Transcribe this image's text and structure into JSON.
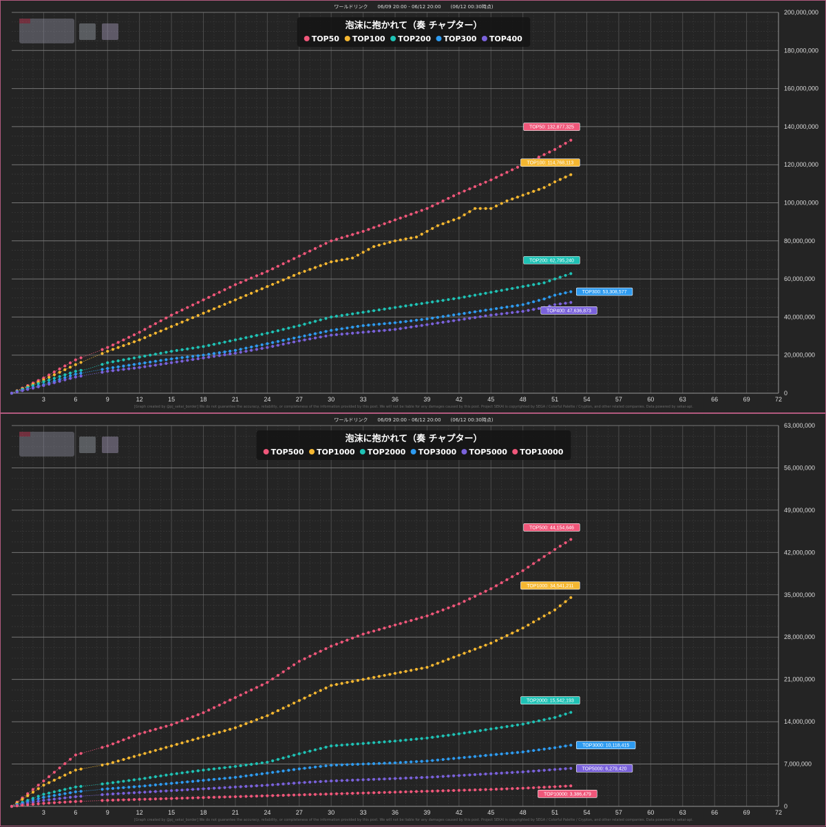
{
  "chart_data": [
    {
      "type": "line",
      "header": "ワールドリンク　　06/09 20:00 - 06/12 20:00　　(06/12 00:30時点)",
      "title": "泡沫に抱かれて（奏 チャプター）",
      "footer": "[Graph created by @pj_sekai_border]  We do not guarantee the accuracy, reliability, or completeness of the information provided by this post. We will not be liable for any damages caused by this post. Project SEKAI is copyrighted by SEGA / Colorful Palette / Crypton, and other related companies. Data powered by sekai-api.",
      "xlim": [
        0,
        72
      ],
      "ylim": [
        0,
        200000000
      ],
      "xticks": [
        "3",
        "6",
        "9",
        "12",
        "15",
        "18",
        "21",
        "24",
        "27",
        "30",
        "33",
        "36",
        "39",
        "42",
        "45",
        "48",
        "51",
        "54",
        "57",
        "60",
        "63",
        "66",
        "69",
        "72"
      ],
      "yticks": [
        "0",
        "20,000,000",
        "40,000,000",
        "60,000,000",
        "80,000,000",
        "100,000,000",
        "120,000,000",
        "140,000,000",
        "160,000,000",
        "180,000,000",
        "200,000,000"
      ],
      "grid": true,
      "legend_position": "top-center",
      "series": [
        {
          "name": "TOP50",
          "color": "#f0577a",
          "label": "TOP50: 132,877,325",
          "final": 132877325,
          "points": [
            [
              0,
              0
            ],
            [
              3,
              8000000
            ],
            [
              6,
              17500000
            ],
            [
              9,
              24000000
            ],
            [
              12,
              32000000
            ],
            [
              15,
              41000000
            ],
            [
              18,
              49000000
            ],
            [
              21,
              57000000
            ],
            [
              24,
              64000000
            ],
            [
              27,
              72000000
            ],
            [
              30,
              80000000
            ],
            [
              33,
              85000000
            ],
            [
              36,
              91000000
            ],
            [
              39,
              97000000
            ],
            [
              42,
              105000000
            ],
            [
              45,
              112000000
            ],
            [
              48,
              120000000
            ],
            [
              51,
              128000000
            ],
            [
              52.5,
              132877325
            ]
          ]
        },
        {
          "name": "TOP100",
          "color": "#f5b731",
          "label": "TOP100: 114,768,113",
          "final": 114768113,
          "points": [
            [
              0,
              0
            ],
            [
              3,
              7000000
            ],
            [
              6,
              15000000
            ],
            [
              9,
              22000000
            ],
            [
              12,
              28000000
            ],
            [
              15,
              35000000
            ],
            [
              18,
              42000000
            ],
            [
              21,
              49000000
            ],
            [
              24,
              56000000
            ],
            [
              27,
              63000000
            ],
            [
              30,
              69000000
            ],
            [
              32,
              71000000
            ],
            [
              34,
              77000000
            ],
            [
              36,
              80000000
            ],
            [
              38,
              82000000
            ],
            [
              40,
              88000000
            ],
            [
              42,
              92000000
            ],
            [
              43.5,
              97000000
            ],
            [
              45,
              97000000
            ],
            [
              46.5,
              101000000
            ],
            [
              48,
              104000000
            ],
            [
              50,
              108000000
            ],
            [
              51,
              111000000
            ],
            [
              52.5,
              114768113
            ]
          ]
        },
        {
          "name": "TOP200",
          "color": "#1fc2b5",
          "label": "TOP200: 62,795,240",
          "final": 62795240,
          "points": [
            [
              0,
              0
            ],
            [
              3,
              6000000
            ],
            [
              6,
              11500000
            ],
            [
              7,
              12500000
            ],
            [
              9,
              16000000
            ],
            [
              12,
              19000000
            ],
            [
              15,
              22000000
            ],
            [
              18,
              24500000
            ],
            [
              21,
              28000000
            ],
            [
              24,
              31500000
            ],
            [
              27,
              35500000
            ],
            [
              30,
              40000000
            ],
            [
              33,
              42500000
            ],
            [
              36,
              45000000
            ],
            [
              39,
              47500000
            ],
            [
              42,
              50000000
            ],
            [
              45,
              53000000
            ],
            [
              48,
              56000000
            ],
            [
              50,
              58000000
            ],
            [
              51,
              60000000
            ],
            [
              52.5,
              62795240
            ]
          ]
        },
        {
          "name": "TOP300",
          "color": "#2e9bf0",
          "label": "TOP300: 53,308,577",
          "final": 53308577,
          "points": [
            [
              0,
              0
            ],
            [
              3,
              4500000
            ],
            [
              6,
              10000000
            ],
            [
              9,
              13000000
            ],
            [
              12,
              15500000
            ],
            [
              15,
              18000000
            ],
            [
              18,
              20000000
            ],
            [
              21,
              22500000
            ],
            [
              24,
              26000000
            ],
            [
              27,
              29500000
            ],
            [
              30,
              33000000
            ],
            [
              33,
              35500000
            ],
            [
              36,
              37000000
            ],
            [
              39,
              39000000
            ],
            [
              42,
              41500000
            ],
            [
              45,
              44000000
            ],
            [
              48,
              46500000
            ],
            [
              50,
              49500000
            ],
            [
              51,
              51500000
            ],
            [
              52.5,
              53308577
            ]
          ]
        },
        {
          "name": "TOP400",
          "color": "#7a62db",
          "label": "TOP400: 47,636,873",
          "final": 47636873,
          "points": [
            [
              0,
              0
            ],
            [
              3,
              4000000
            ],
            [
              6,
              8500000
            ],
            [
              9,
              11500000
            ],
            [
              12,
              13500000
            ],
            [
              15,
              16000000
            ],
            [
              18,
              18500000
            ],
            [
              21,
              21000000
            ],
            [
              24,
              24000000
            ],
            [
              27,
              27500000
            ],
            [
              30,
              30500000
            ],
            [
              33,
              32000000
            ],
            [
              36,
              33500000
            ],
            [
              39,
              36000000
            ],
            [
              42,
              38500000
            ],
            [
              45,
              41000000
            ],
            [
              48,
              43000000
            ],
            [
              50,
              45000000
            ],
            [
              51,
              46500000
            ],
            [
              52.5,
              47636873
            ]
          ]
        }
      ]
    },
    {
      "type": "line",
      "header": "ワールドリンク　　06/09 20:00 - 06/12 20:00　　(06/12 00:30時点)",
      "title": "泡沫に抱かれて（奏 チャプター）",
      "footer": "[Graph created by @pj_sekai_border]  We do not guarantee the accuracy, reliability, or completeness of the information provided by this post. We will not be liable for any damages caused by this post. Project SEKAI is copyrighted by SEGA / Colorful Palette / Crypton, and other related companies. Data powered by sekai-api.",
      "xlim": [
        0,
        72
      ],
      "ylim": [
        0,
        63000000
      ],
      "xticks": [
        "3",
        "6",
        "9",
        "12",
        "15",
        "18",
        "21",
        "24",
        "27",
        "30",
        "33",
        "36",
        "39",
        "42",
        "45",
        "48",
        "51",
        "54",
        "57",
        "60",
        "63",
        "66",
        "69",
        "72"
      ],
      "yticks": [
        "0",
        "7,000,000",
        "14,000,000",
        "21,000,000",
        "28,000,000",
        "35,000,000",
        "42,000,000",
        "49,000,000",
        "56,000,000",
        "63,000,000"
      ],
      "grid": true,
      "legend_position": "top-center",
      "series": [
        {
          "name": "TOP500",
          "color": "#f0577a",
          "label": "TOP500: 44,154,646",
          "final": 44154646,
          "points": [
            [
              0,
              0
            ],
            [
              3,
              4200000
            ],
            [
              6,
              8500000
            ],
            [
              9,
              10000000
            ],
            [
              12,
              12000000
            ],
            [
              15,
              13500000
            ],
            [
              18,
              15500000
            ],
            [
              21,
              18000000
            ],
            [
              24,
              20500000
            ],
            [
              27,
              24000000
            ],
            [
              30,
              26500000
            ],
            [
              33,
              28500000
            ],
            [
              36,
              30000000
            ],
            [
              39,
              31500000
            ],
            [
              42,
              33500000
            ],
            [
              45,
              36000000
            ],
            [
              48,
              39000000
            ],
            [
              51,
              42500000
            ],
            [
              52.5,
              44154646
            ]
          ]
        },
        {
          "name": "TOP1000",
          "color": "#f5b731",
          "label": "TOP1000: 34,541,211",
          "final": 34541211,
          "points": [
            [
              0,
              0
            ],
            [
              3,
              3500000
            ],
            [
              6,
              6000000
            ],
            [
              9,
              7000000
            ],
            [
              12,
              8500000
            ],
            [
              15,
              10000000
            ],
            [
              18,
              11500000
            ],
            [
              21,
              13000000
            ],
            [
              24,
              15000000
            ],
            [
              27,
              17500000
            ],
            [
              30,
              20000000
            ],
            [
              33,
              21000000
            ],
            [
              36,
              22000000
            ],
            [
              39,
              23000000
            ],
            [
              42,
              25000000
            ],
            [
              45,
              27000000
            ],
            [
              48,
              29500000
            ],
            [
              51,
              32500000
            ],
            [
              52.5,
              34541211
            ]
          ]
        },
        {
          "name": "TOP2000",
          "color": "#1fc2b5",
          "label": "TOP2000: 15,542,193",
          "final": 15542193,
          "points": [
            [
              0,
              0
            ],
            [
              3,
              2000000
            ],
            [
              6,
              3200000
            ],
            [
              9,
              3800000
            ],
            [
              12,
              4500000
            ],
            [
              15,
              5300000
            ],
            [
              18,
              6000000
            ],
            [
              21,
              6600000
            ],
            [
              24,
              7300000
            ],
            [
              27,
              8700000
            ],
            [
              30,
              10000000
            ],
            [
              33,
              10400000
            ],
            [
              36,
              10800000
            ],
            [
              39,
              11300000
            ],
            [
              42,
              12000000
            ],
            [
              45,
              12800000
            ],
            [
              48,
              13600000
            ],
            [
              51,
              14700000
            ],
            [
              52.5,
              15542193
            ]
          ]
        },
        {
          "name": "TOP3000",
          "color": "#2e9bf0",
          "label": "TOP3000: 10,118,415",
          "final": 10118415,
          "points": [
            [
              0,
              0
            ],
            [
              3,
              1500000
            ],
            [
              6,
              2400000
            ],
            [
              9,
              2900000
            ],
            [
              12,
              3300000
            ],
            [
              15,
              3800000
            ],
            [
              18,
              4300000
            ],
            [
              21,
              4800000
            ],
            [
              24,
              5500000
            ],
            [
              27,
              6200000
            ],
            [
              30,
              6800000
            ],
            [
              33,
              7000000
            ],
            [
              36,
              7200000
            ],
            [
              39,
              7500000
            ],
            [
              42,
              8000000
            ],
            [
              45,
              8500000
            ],
            [
              48,
              9000000
            ],
            [
              51,
              9700000
            ],
            [
              52.5,
              10118415
            ]
          ]
        },
        {
          "name": "TOP5000",
          "color": "#7a62db",
          "label": "TOP5000: 6,279,420",
          "final": 6279420,
          "points": [
            [
              0,
              0
            ],
            [
              3,
              1000000
            ],
            [
              6,
              1600000
            ],
            [
              9,
              2000000
            ],
            [
              12,
              2300000
            ],
            [
              15,
              2600000
            ],
            [
              18,
              2900000
            ],
            [
              21,
              3200000
            ],
            [
              24,
              3500000
            ],
            [
              27,
              3900000
            ],
            [
              30,
              4200000
            ],
            [
              33,
              4400000
            ],
            [
              36,
              4600000
            ],
            [
              39,
              4800000
            ],
            [
              42,
              5100000
            ],
            [
              45,
              5400000
            ],
            [
              48,
              5700000
            ],
            [
              51,
              6100000
            ],
            [
              52.5,
              6279420
            ]
          ]
        },
        {
          "name": "TOP10000",
          "color": "#f0577a",
          "label": "TOP10000: 3,386,479",
          "final": 3386479,
          "points": [
            [
              0,
              0
            ],
            [
              3,
              500000
            ],
            [
              6,
              800000
            ],
            [
              9,
              1000000
            ],
            [
              12,
              1150000
            ],
            [
              15,
              1300000
            ],
            [
              18,
              1450000
            ],
            [
              21,
              1600000
            ],
            [
              24,
              1750000
            ],
            [
              27,
              1900000
            ],
            [
              30,
              2050000
            ],
            [
              33,
              2200000
            ],
            [
              36,
              2350000
            ],
            [
              39,
              2500000
            ],
            [
              42,
              2650000
            ],
            [
              45,
              2800000
            ],
            [
              48,
              3000000
            ],
            [
              51,
              3250000
            ],
            [
              52.5,
              3386479
            ]
          ]
        }
      ]
    }
  ]
}
